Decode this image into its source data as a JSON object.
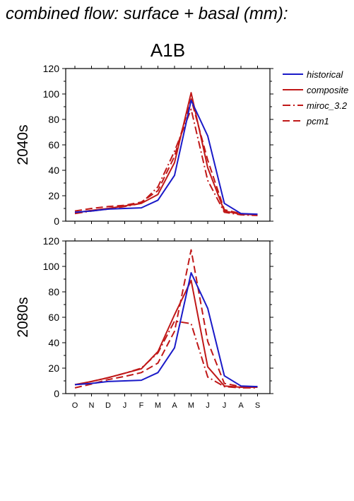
{
  "title": "combined flow: surface + basal (mm):",
  "scenario": "A1B",
  "colors": {
    "historical": "#1a1ac8",
    "model": "#c01818"
  },
  "legend": [
    {
      "label": "historical",
      "color": "#1a1ac8",
      "dash": "solid"
    },
    {
      "label": "composite",
      "color": "#c01818",
      "dash": "solid"
    },
    {
      "label": "miroc_3.2",
      "color": "#c01818",
      "dash": "dashdot"
    },
    {
      "label": "pcm1",
      "color": "#c01818",
      "dash": "dash"
    }
  ],
  "chart_data": [
    {
      "type": "line",
      "ylabel": "2040s",
      "ylim": [
        0,
        120
      ],
      "yticks": [
        0,
        20,
        40,
        60,
        80,
        100,
        120
      ],
      "categories": [
        "O",
        "N",
        "D",
        "J",
        "F",
        "M",
        "A",
        "M",
        "J",
        "J",
        "A",
        "S"
      ],
      "series": [
        {
          "name": "historical",
          "values": [
            7,
            8,
            9.5,
            10,
            10.5,
            16.5,
            36,
            95,
            67,
            14,
            6,
            5.5
          ]
        },
        {
          "name": "composite",
          "values": [
            6.5,
            8.5,
            10,
            12,
            14,
            21,
            46,
            101,
            42,
            8,
            5.5,
            5
          ]
        },
        {
          "name": "miroc_3.2",
          "values": [
            6,
            8,
            9.5,
            11.5,
            14,
            27,
            55,
            88,
            32,
            7,
            5,
            4.5
          ]
        },
        {
          "name": "pcm1",
          "values": [
            8,
            10,
            11.5,
            12.5,
            15,
            24,
            51,
            96,
            48,
            9,
            6,
            5
          ]
        }
      ]
    },
    {
      "type": "line",
      "ylabel": "2080s",
      "ylim": [
        0,
        120
      ],
      "yticks": [
        0,
        20,
        40,
        60,
        80,
        100,
        120
      ],
      "categories": [
        "O",
        "N",
        "D",
        "J",
        "F",
        "M",
        "A",
        "M",
        "J",
        "J",
        "A",
        "S"
      ],
      "series": [
        {
          "name": "historical",
          "values": [
            7,
            8,
            9.5,
            10,
            10.5,
            16.5,
            36,
            95,
            67,
            14,
            6,
            5.5
          ]
        },
        {
          "name": "composite",
          "values": [
            7,
            9.5,
            12.5,
            16,
            19.5,
            33,
            62,
            89,
            21,
            6,
            5,
            5
          ]
        },
        {
          "name": "miroc_3.2",
          "values": [
            7,
            9.5,
            12.5,
            16,
            20,
            32,
            57,
            55,
            13,
            5.5,
            4.5,
            4.5
          ]
        },
        {
          "name": "pcm1",
          "values": [
            4.5,
            7.5,
            11,
            13.5,
            16.5,
            24,
            49,
            113,
            41,
            8,
            5.5,
            5.5
          ]
        }
      ]
    }
  ]
}
